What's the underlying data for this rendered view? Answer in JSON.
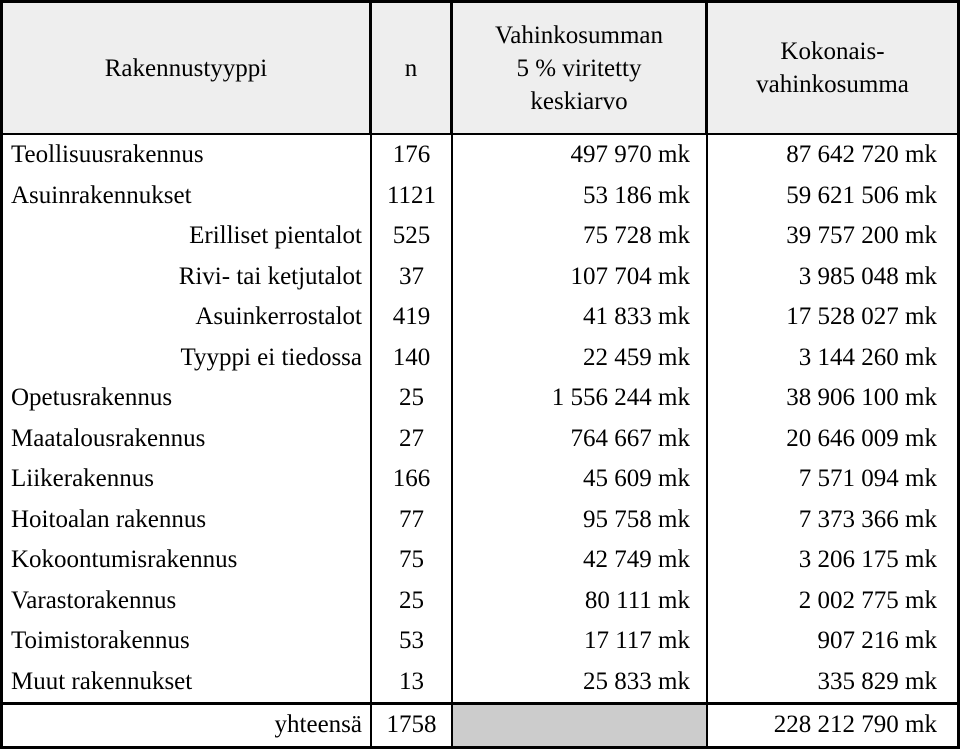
{
  "header": {
    "col1": "Rakennustyyppi",
    "col2": "n",
    "col3_line1": "Vahinkosumman",
    "col3_line2": "5 % viritetty",
    "col3_line3": "keskiarvo",
    "col4_line1": "Kokonais-",
    "col4_line2": "vahinkosumma"
  },
  "rows": [
    {
      "type": "Teollisuusrakennus",
      "n": "176",
      "avg": "497 970 mk",
      "total": "87 642 720 mk",
      "sub": false
    },
    {
      "type": "Asuinrakennukset",
      "n": "1121",
      "avg": "53 186 mk",
      "total": "59 621 506 mk",
      "sub": false
    },
    {
      "type": "Erilliset pientalot",
      "n": "525",
      "avg": "75 728 mk",
      "total": "39 757 200 mk",
      "sub": true
    },
    {
      "type": "Rivi- tai ketjutalot",
      "n": "37",
      "avg": "107 704 mk",
      "total": "3 985 048 mk",
      "sub": true
    },
    {
      "type": "Asuinkerrostalot",
      "n": "419",
      "avg": "41 833 mk",
      "total": "17 528 027 mk",
      "sub": true
    },
    {
      "type": "Tyyppi ei tiedossa",
      "n": "140",
      "avg": "22 459 mk",
      "total": "3 144 260 mk",
      "sub": true
    },
    {
      "type": "Opetusrakennus",
      "n": "25",
      "avg": "1 556 244 mk",
      "total": "38 906 100 mk",
      "sub": false
    },
    {
      "type": "Maatalousrakennus",
      "n": "27",
      "avg": "764 667 mk",
      "total": "20 646 009 mk",
      "sub": false
    },
    {
      "type": "Liikerakennus",
      "n": "166",
      "avg": "45 609 mk",
      "total": "7 571 094 mk",
      "sub": false
    },
    {
      "type": "Hoitoalan rakennus",
      "n": "77",
      "avg": "95 758 mk",
      "total": "7 373 366 mk",
      "sub": false
    },
    {
      "type": "Kokoontumisrakennus",
      "n": "75",
      "avg": "42 749 mk",
      "total": "3 206 175 mk",
      "sub": false
    },
    {
      "type": "Varastorakennus",
      "n": "25",
      "avg": "80 111 mk",
      "total": "2 002 775 mk",
      "sub": false
    },
    {
      "type": "Toimistorakennus",
      "n": "53",
      "avg": "17 117 mk",
      "total": "907 216 mk",
      "sub": false
    },
    {
      "type": "Muut rakennukset",
      "n": "13",
      "avg": "25 833 mk",
      "total": "335 829 mk",
      "sub": false
    }
  ],
  "total_row": {
    "label": "yhteensä",
    "n": "1758",
    "avg": "",
    "total": "228 212 790 mk"
  }
}
